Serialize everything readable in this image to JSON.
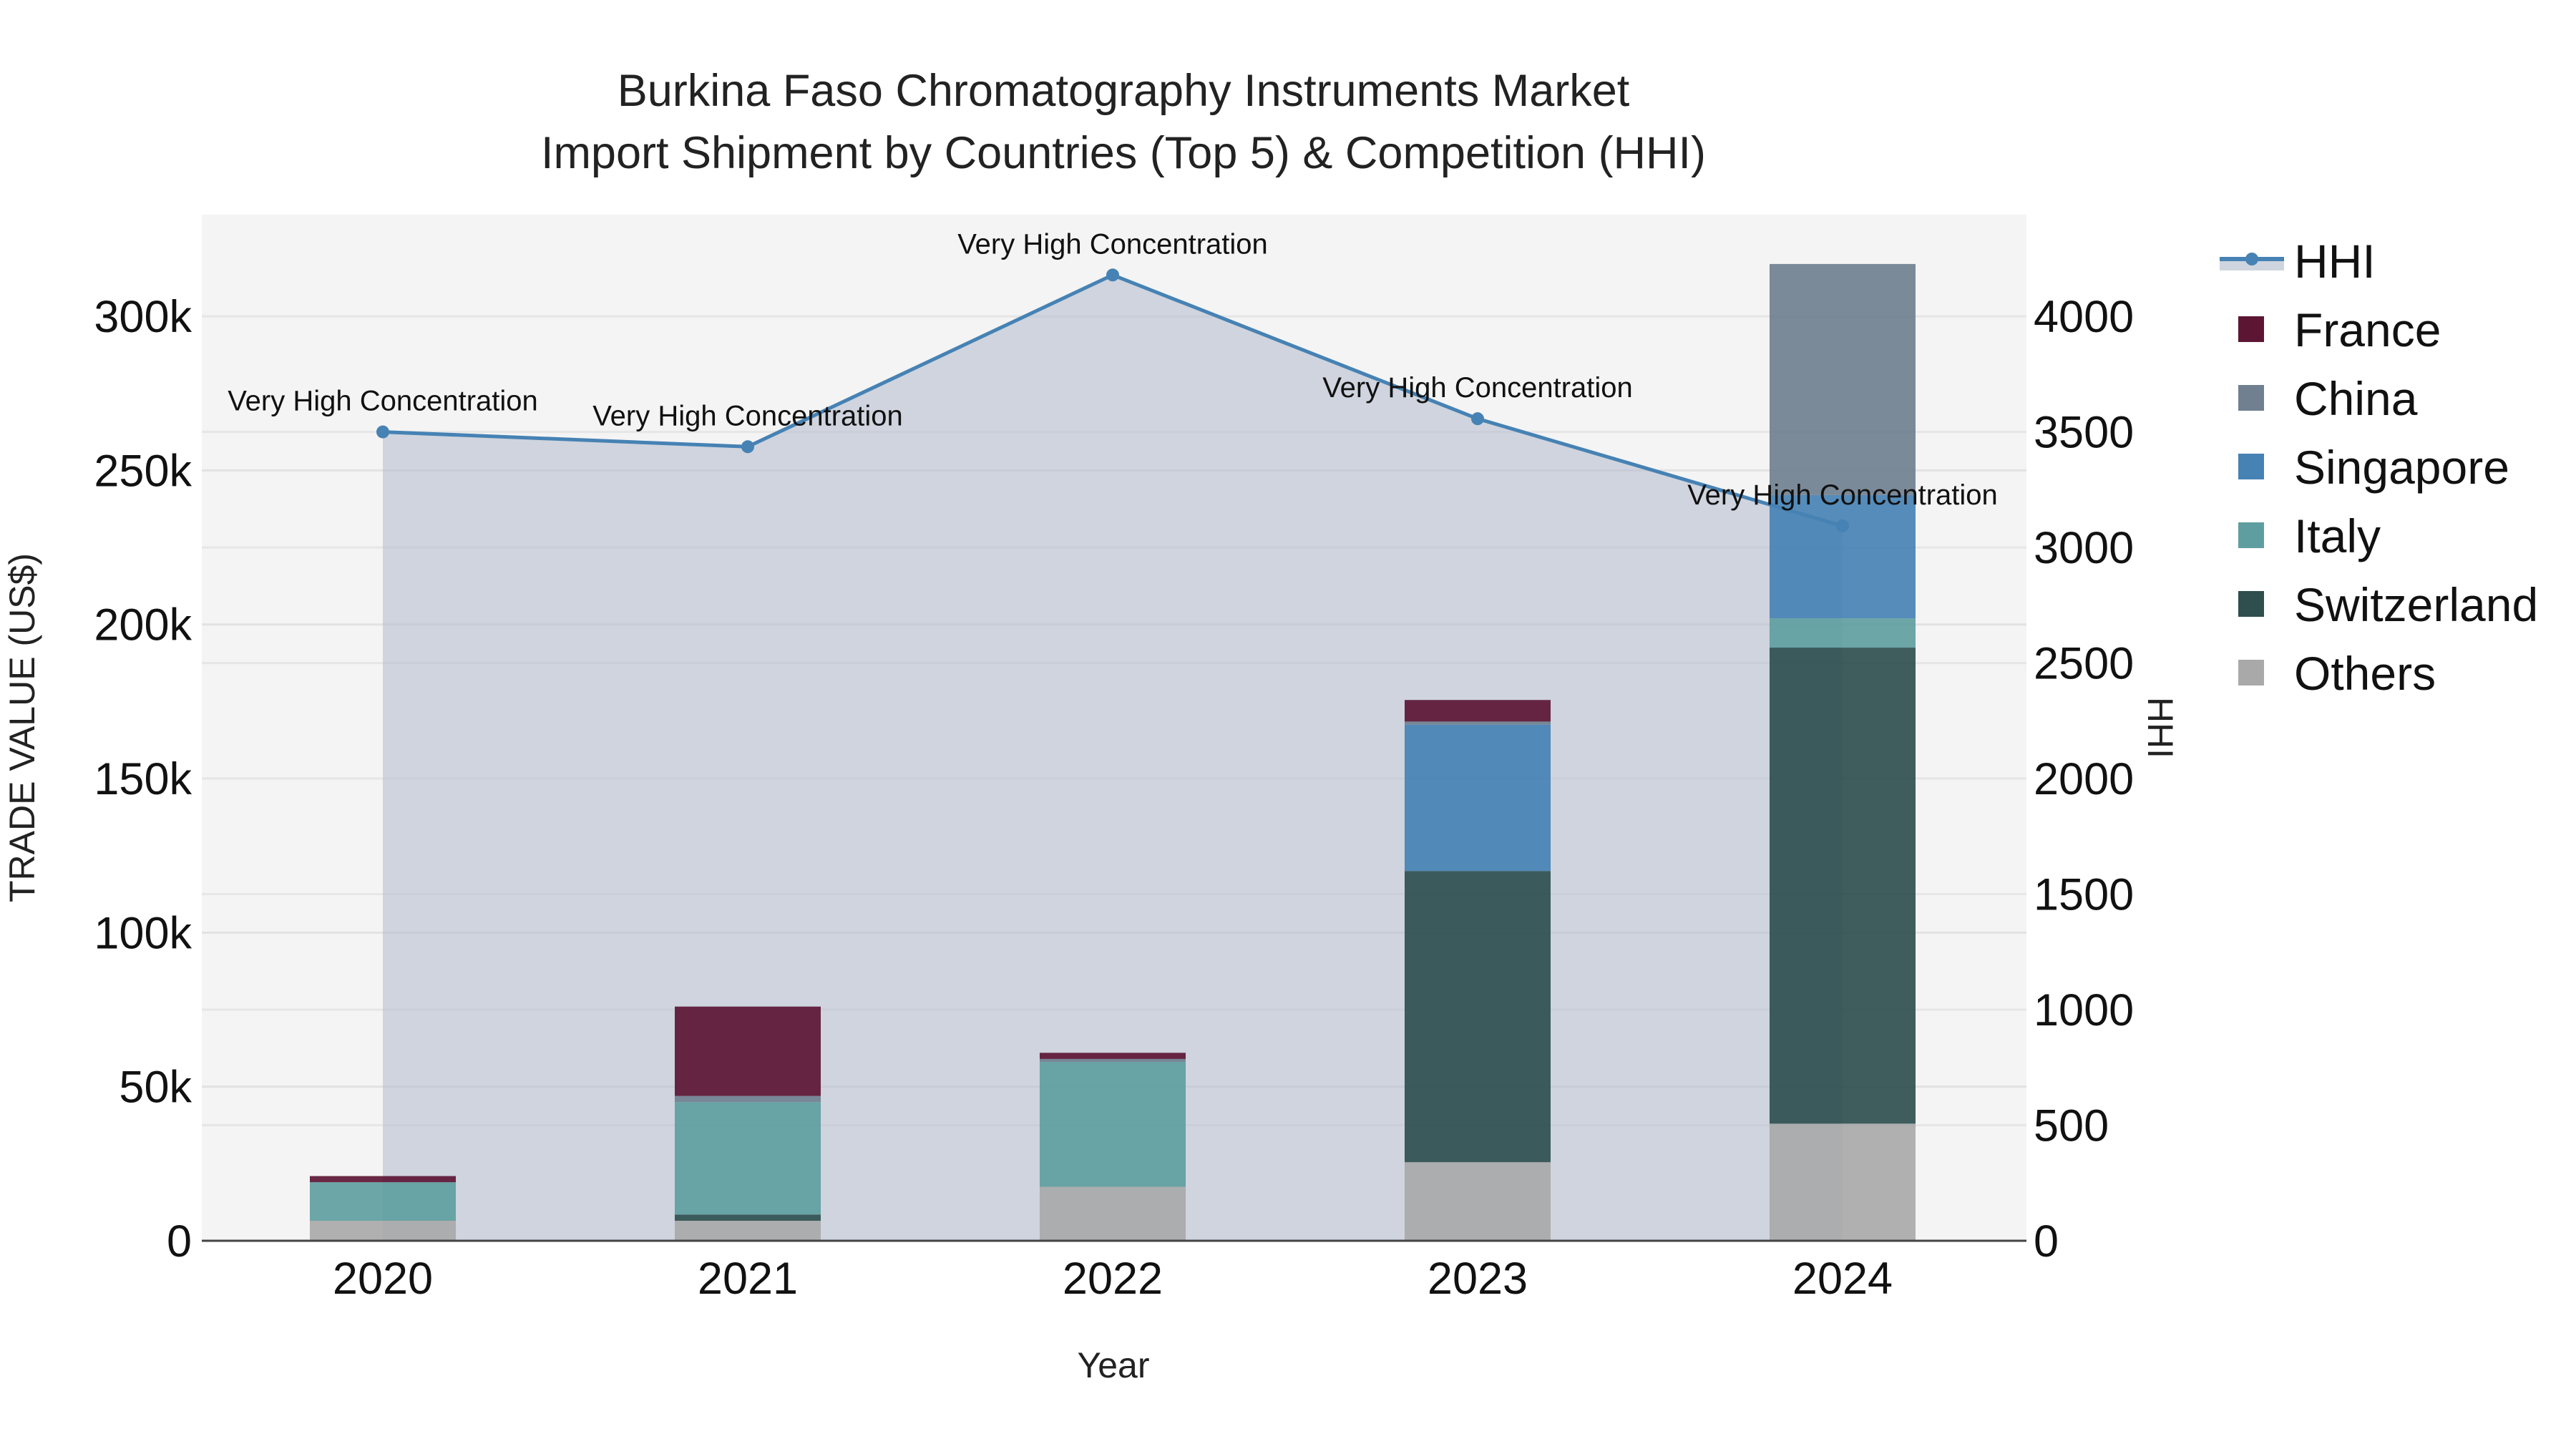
{
  "title_line1": "Burkina Faso Chromatography Instruments Market",
  "title_line2": "Import Shipment by Countries (Top 5) & Competition (HHI)",
  "xaxis_title": "Year",
  "yaxis_title": "TRADE VALUE (US$)",
  "y2axis_title": "HHI",
  "colors": {
    "France": "#5c1634",
    "China": "#708090",
    "Singapore": "#4682b4",
    "Italy": "#5f9ea0",
    "Switzerland": "#2f4f4f",
    "Others": "#a9a9a9",
    "HHI_line": "#4682b4",
    "HHI_fill": "rgba(176,186,204,0.55)",
    "plot_bg": "#f4f4f4"
  },
  "chart_data": {
    "type": "bar",
    "barmode": "stack",
    "title": "Burkina Faso Chromatography Instruments Market\nImport Shipment by Countries (Top 5) & Competition (HHI)",
    "xlabel": "Year",
    "ylabel": "TRADE VALUE (US$)",
    "y2label": "HHI",
    "categories": [
      "2020",
      "2021",
      "2022",
      "2023",
      "2024"
    ],
    "ylim": [
      0,
      333000
    ],
    "y2lim": [
      0,
      4440
    ],
    "yticks": [
      "0",
      "50k",
      "100k",
      "150k",
      "200k",
      "250k",
      "300k"
    ],
    "y2ticks": [
      "0",
      "500",
      "1000",
      "1500",
      "2000",
      "2500",
      "3000",
      "3500",
      "4000"
    ],
    "series": [
      {
        "name": "Others",
        "values": [
          6500,
          6500,
          17500,
          25500,
          38000
        ]
      },
      {
        "name": "Switzerland",
        "values": [
          0,
          2000,
          0,
          94500,
          154500
        ]
      },
      {
        "name": "Italy",
        "values": [
          12500,
          36500,
          40500,
          0,
          9500
        ]
      },
      {
        "name": "Singapore",
        "values": [
          0,
          0,
          0,
          47500,
          40000
        ]
      },
      {
        "name": "China",
        "values": [
          0,
          2000,
          1000,
          1000,
          75000
        ]
      },
      {
        "name": "France",
        "values": [
          2000,
          29000,
          2000,
          7000,
          0
        ]
      }
    ],
    "line_series": {
      "name": "HHI",
      "axis": "y2",
      "values": [
        3500,
        3436,
        4179,
        3557,
        3093
      ],
      "annotations": [
        "Very High Concentration",
        "Very High Concentration",
        "Very High Concentration",
        "Very High Concentration",
        "Very High Concentration"
      ]
    },
    "legend": [
      "HHI",
      "France",
      "China",
      "Singapore",
      "Italy",
      "Switzerland",
      "Others"
    ],
    "legend_position": "right",
    "grid": true
  }
}
